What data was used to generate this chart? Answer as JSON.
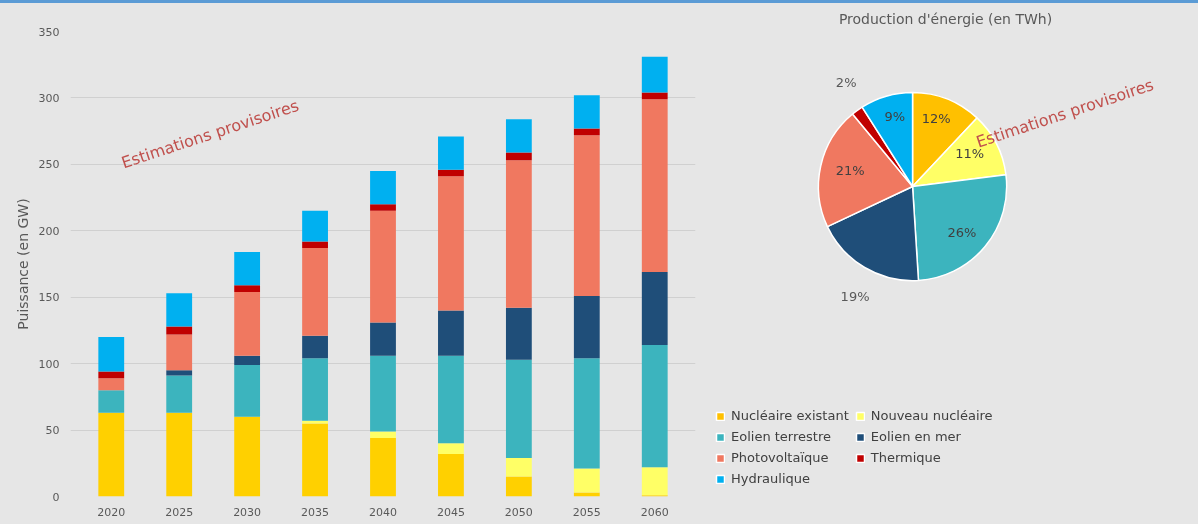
{
  "chart_data": [
    {
      "type": "bar",
      "stacked": true,
      "ylabel": "Puissance (en GW)",
      "categories": [
        "2020",
        "2025",
        "2030",
        "2035",
        "2040",
        "2045",
        "2050",
        "2055",
        "2060"
      ],
      "ylim": [
        0,
        350
      ],
      "yticks": [
        0,
        50,
        100,
        150,
        200,
        250,
        300,
        350
      ],
      "grid": "y",
      "series": [
        {
          "color": "#ffd000",
          "values": [
            63,
            63,
            60,
            55,
            44,
            32,
            15,
            3,
            1
          ]
        },
        {
          "color": "#ffff66",
          "values": [
            0,
            0,
            0,
            2,
            5,
            8,
            14,
            18,
            21
          ]
        },
        {
          "color": "#3cb4be",
          "values": [
            17,
            28,
            39,
            47,
            57,
            66,
            74,
            83,
            92
          ]
        },
        {
          "color": "#1f4e79",
          "values": [
            0,
            4,
            7,
            17,
            25,
            34,
            39,
            47,
            55
          ]
        },
        {
          "color": "#f07860",
          "values": [
            9,
            27,
            48,
            66,
            84,
            101,
            111,
            121,
            130
          ]
        },
        {
          "color": "#c00000",
          "values": [
            5,
            6,
            5,
            5,
            5,
            5,
            6,
            5,
            5
          ]
        },
        {
          "color": "#00b0f0",
          "values": [
            26,
            25,
            25,
            23,
            25,
            25,
            25,
            25,
            27
          ]
        }
      ],
      "annotations": [
        "Estimations provisoires"
      ]
    },
    {
      "type": "pie",
      "title": "Production d'énergie (en TWh)",
      "categories": [
        "Nucléaire existant",
        "Nouveau nucléaire",
        "Eolien terrestre",
        "Eolien en mer",
        "Photovoltaïque",
        "Thermique",
        "Hydraulique"
      ],
      "values": [
        12,
        11,
        26,
        19,
        21,
        2,
        9
      ],
      "value_labels": [
        "12%",
        "11%",
        "26%",
        "19%",
        "21%",
        "2%",
        "9%"
      ],
      "colors": [
        "#ffc000",
        "#ffff66",
        "#3cb4be",
        "#1f4e79",
        "#f07860",
        "#c00000",
        "#00b0f0"
      ],
      "legend": "bottom",
      "annotations": [
        "Estimations provisoires"
      ]
    }
  ]
}
